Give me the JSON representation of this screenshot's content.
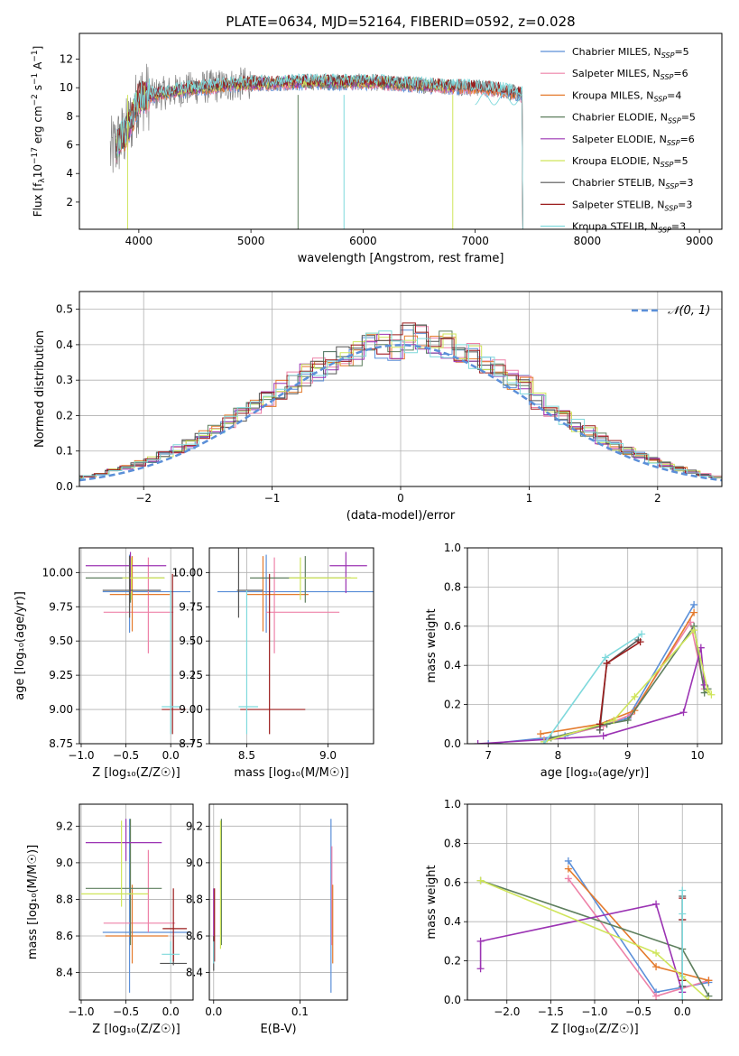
{
  "figure": {
    "title": "PLATE=0634, MJD=52164, FIBERID=0592, z=0.028"
  },
  "colors": {
    "Chabrier MILES": "#5b8fd8",
    "Salpeter MILES": "#ee82a8",
    "Kroupa MILES": "#e47a2c",
    "Chabrier ELODIE": "#5e7f5e",
    "Salpeter ELODIE": "#9b33b3",
    "Kroupa ELODIE": "#cfe55a",
    "Chabrier STELIB": "#555555",
    "Salpeter STELIB": "#9b1c1c",
    "Kroupa STELIB": "#7fd9dc",
    "data": "#808080"
  },
  "chart_data": [
    {
      "id": "spectrum",
      "type": "line",
      "xlabel": "wavelength [Angstrom, rest frame]",
      "ylabel_main": "Flux [f",
      "ylabel_sub": "λ",
      "ylabel_rest": "10",
      "ylabel_exp": "−17",
      "ylabel_tail": " erg cm",
      "ylabel_exp2": "−2",
      "ylabel_s": " s",
      "ylabel_exp3": "−1",
      "ylabel_A": " A",
      "ylabel_exp4": "−1",
      "ylabel_end": "]",
      "xlim": [
        3470,
        9200
      ],
      "ylim": [
        0.1,
        13.8
      ],
      "xticks": [
        4000,
        5000,
        6000,
        7000,
        8000,
        9000
      ],
      "yticks": [
        2,
        4,
        6,
        8,
        10,
        12
      ],
      "legend": [
        {
          "name": "Chabrier MILES",
          "nssp": "5"
        },
        {
          "name": "Salpeter MILES",
          "nssp": "6"
        },
        {
          "name": "Kroupa MILES",
          "nssp": "4"
        },
        {
          "name": "Chabrier ELODIE",
          "nssp": "5"
        },
        {
          "name": "Salpeter ELODIE",
          "nssp": "6"
        },
        {
          "name": "Kroupa ELODIE",
          "nssp": "5"
        },
        {
          "name": "Chabrier STELIB",
          "nssp": "3"
        },
        {
          "name": "Salpeter STELIB",
          "nssp": "3"
        },
        {
          "name": "Kroupa STELIB",
          "nssp": "3"
        }
      ],
      "legend_placement": "upper right",
      "continuum_points": [
        [
          3750,
          5.5
        ],
        [
          3900,
          7.0
        ],
        [
          4000,
          9.3
        ],
        [
          4200,
          9.6
        ],
        [
          4500,
          10.0
        ],
        [
          5000,
          10.3
        ],
        [
          5500,
          10.4
        ],
        [
          6000,
          10.4
        ],
        [
          6500,
          10.2
        ],
        [
          7000,
          10.0
        ],
        [
          7200,
          9.9
        ],
        [
          7420,
          9.5
        ]
      ],
      "model_end": {
        "MILES": 7420,
        "ELODIE": 6800,
        "STELIB": 9000
      },
      "grid": false
    },
    {
      "id": "residuals",
      "type": "step",
      "xlabel": "(data-model)/error",
      "ylabel": "Normed distribution",
      "xlim": [
        -2.5,
        2.5
      ],
      "ylim": [
        0,
        0.55
      ],
      "xticks": [
        -2,
        -1,
        0,
        1,
        2
      ],
      "xtick_labels": [
        "−2",
        "−1",
        "0",
        "1",
        "2"
      ],
      "yticks": [
        0.0,
        0.1,
        0.2,
        0.3,
        0.4,
        0.5
      ],
      "ytick_labels": [
        "0.0",
        "0.1",
        "0.2",
        "0.3",
        "0.4",
        "0.5"
      ],
      "legend_label": "𝒩(0, 1)",
      "bin_width": 0.1,
      "grid": true
    },
    {
      "id": "age-vs-Z",
      "type": "errorbar",
      "xlabel": "Z [log₁₀(Z/Z☉)]",
      "ylabel": "age  [log₁₀(age/yr)]",
      "xlim": [
        -1.02,
        0.25
      ],
      "ylim": [
        8.75,
        10.18
      ],
      "xticks": [
        -1.0,
        -0.5,
        0.0
      ],
      "xtick_labels": [
        "−1.0",
        "−0.5",
        "0.0"
      ],
      "yticks": [
        8.75,
        9.0,
        9.25,
        9.5,
        9.75,
        10.0
      ],
      "ytick_labels": [
        "8.75",
        "9.00",
        "9.25",
        "9.50",
        "9.75",
        "10.00"
      ],
      "points": [
        {
          "model": "Chabrier MILES",
          "x": -0.46,
          "xerr": [
            0.3,
            0.68
          ],
          "y": 9.86,
          "yerr": [
            0.3,
            0.27
          ]
        },
        {
          "model": "Salpeter MILES",
          "x": -0.25,
          "xerr": [
            0.5,
            0.28
          ],
          "y": 9.71,
          "yerr": [
            0.3,
            0.4
          ]
        },
        {
          "model": "Kroupa MILES",
          "x": -0.43,
          "xerr": [
            0.25,
            0.42
          ],
          "y": 9.84,
          "yerr": [
            0.27,
            0.28
          ]
        },
        {
          "model": "Chabrier ELODIE",
          "x": -0.45,
          "xerr": [
            0.5,
            0.38
          ],
          "y": 9.96,
          "yerr": [
            0.18,
            0.16
          ]
        },
        {
          "model": "Salpeter ELODIE",
          "x": -0.45,
          "xerr": [
            0.5,
            0.4
          ],
          "y": 10.05,
          "yerr": [
            0.2,
            0.1
          ]
        },
        {
          "model": "Kroupa ELODIE",
          "x": -0.44,
          "xerr": [
            0.1,
            0.37
          ],
          "y": 9.96,
          "yerr": [
            0.16,
            0.15
          ]
        },
        {
          "model": "Chabrier STELIB",
          "x": -0.46,
          "xerr": [
            0.3,
            0.35
          ],
          "y": 9.87,
          "yerr": [
            0.2,
            0.25
          ]
        },
        {
          "model": "Salpeter STELIB",
          "x": 0.02,
          "xerr": [
            0.12,
            0.15
          ],
          "y": 9.0,
          "yerr": [
            0.18,
            0.99
          ]
        },
        {
          "model": "Kroupa STELIB",
          "x": 0.0,
          "xerr": [
            0.1,
            0.1
          ],
          "y": 9.02,
          "yerr": [
            0.2,
            0.85
          ]
        }
      ],
      "grid": true
    },
    {
      "id": "age-vs-mass",
      "type": "errorbar",
      "xlabel": "mass [log₁₀(M/M☉)]",
      "xlim": [
        8.27,
        9.28
      ],
      "ylim": [
        8.75,
        10.18
      ],
      "xticks": [
        8.5,
        9.0
      ],
      "xtick_labels": [
        "8.5",
        "9.0"
      ],
      "yticks": [
        8.75,
        9.0,
        9.25,
        9.5,
        9.75,
        10.0
      ],
      "ytick_labels": [
        "8.75",
        "9.00",
        "9.25",
        "9.50",
        "9.75",
        "10.00"
      ],
      "points": [
        {
          "model": "Chabrier MILES",
          "x": 8.62,
          "xerr": [
            0.3,
            0.66
          ],
          "y": 9.86,
          "yerr": [
            0.3,
            0.27
          ]
        },
        {
          "model": "Salpeter MILES",
          "x": 8.67,
          "xerr": [
            0.05,
            0.4
          ],
          "y": 9.71,
          "yerr": [
            0.3,
            0.4
          ]
        },
        {
          "model": "Kroupa MILES",
          "x": 8.6,
          "xerr": [
            0.1,
            0.28
          ],
          "y": 9.84,
          "yerr": [
            0.27,
            0.28
          ]
        },
        {
          "model": "Chabrier ELODIE",
          "x": 8.86,
          "xerr": [
            0.34,
            0.28
          ],
          "y": 9.96,
          "yerr": [
            0.18,
            0.16
          ]
        },
        {
          "model": "Salpeter ELODIE",
          "x": 9.11,
          "xerr": [
            0.1,
            0.13
          ],
          "y": 10.05,
          "yerr": [
            0.2,
            0.1
          ]
        },
        {
          "model": "Kroupa ELODIE",
          "x": 8.83,
          "xerr": [
            0.07,
            0.35
          ],
          "y": 9.96,
          "yerr": [
            0.16,
            0.15
          ]
        },
        {
          "model": "Chabrier STELIB",
          "x": 8.45,
          "xerr": [
            0.01,
            0.15
          ],
          "y": 9.87,
          "yerr": [
            0.2,
            1.05
          ]
        },
        {
          "model": "Salpeter STELIB",
          "x": 8.64,
          "xerr": [
            0.18,
            0.22
          ],
          "y": 9.0,
          "yerr": [
            0.18,
            0.99
          ]
        },
        {
          "model": "Kroupa STELIB",
          "x": 8.5,
          "xerr": [
            0.05,
            0.07
          ],
          "y": 9.02,
          "yerr": [
            0.2,
            0.85
          ]
        }
      ],
      "grid": true
    },
    {
      "id": "mass-weight-vs-age",
      "type": "line",
      "xlabel": "age  [log₁₀(age/yr)]",
      "ylabel": "mass weight",
      "xlim": [
        6.7,
        10.35
      ],
      "ylim": [
        0.0,
        1.0
      ],
      "xticks": [
        7,
        8,
        9,
        10
      ],
      "xtick_labels": [
        "7",
        "8",
        "9",
        "10"
      ],
      "yticks": [
        0.0,
        0.2,
        0.4,
        0.6,
        0.8,
        1.0
      ],
      "ytick_labels": [
        "0.0",
        "0.2",
        "0.4",
        "0.6",
        "0.8",
        "1.0"
      ],
      "series": [
        {
          "model": "Chabrier MILES",
          "x": [
            7.0,
            8.1,
            8.7,
            9.0,
            9.95
          ],
          "y": [
            0.0,
            0.04,
            0.1,
            0.13,
            0.71
          ]
        },
        {
          "model": "Salpeter MILES",
          "x": [
            7.8,
            8.65,
            9.05,
            9.9,
            10.1
          ],
          "y": [
            0.02,
            0.09,
            0.15,
            0.62,
            0.28
          ]
        },
        {
          "model": "Kroupa MILES",
          "x": [
            7.75,
            8.6,
            9.1,
            9.95
          ],
          "y": [
            0.05,
            0.1,
            0.17,
            0.67
          ]
        },
        {
          "model": "Chabrier ELODIE",
          "x": [
            7.9,
            8.7,
            9.0,
            9.95,
            10.1,
            10.15
          ],
          "y": [
            0.03,
            0.1,
            0.12,
            0.6,
            0.26,
            0.28
          ]
        },
        {
          "model": "Salpeter ELODIE",
          "x": [
            6.85,
            8.65,
            9.8,
            10.05,
            10.1
          ],
          "y": [
            0.0,
            0.04,
            0.16,
            0.49,
            0.3
          ]
        },
        {
          "model": "Kroupa ELODIE",
          "x": [
            7.8,
            8.8,
            9.1,
            9.95,
            10.15,
            10.2
          ],
          "y": [
            0.01,
            0.12,
            0.24,
            0.58,
            0.27,
            0.25
          ]
        },
        {
          "model": "Chabrier STELIB",
          "x": [
            8.6,
            8.7,
            9.15
          ],
          "y": [
            0.07,
            0.41,
            0.53
          ]
        },
        {
          "model": "Salpeter STELIB",
          "x": [
            8.6,
            8.7,
            9.18
          ],
          "y": [
            0.1,
            0.41,
            0.52
          ]
        },
        {
          "model": "Kroupa STELIB",
          "x": [
            7.8,
            8.68,
            9.2
          ],
          "y": [
            0.0,
            0.44,
            0.56
          ]
        }
      ],
      "grid": true
    },
    {
      "id": "mass-vs-Z",
      "type": "errorbar",
      "xlabel": "Z [log₁₀(Z/Z☉)]",
      "ylabel": "mass [log₁₀(M/M☉)]",
      "xlim": [
        -1.02,
        0.25
      ],
      "ylim": [
        8.25,
        9.32
      ],
      "xticks": [
        -1.0,
        -0.5,
        0.0
      ],
      "xtick_labels": [
        "−1.0",
        "−0.5",
        "0.0"
      ],
      "yticks": [
        8.4,
        8.6,
        8.8,
        9.0,
        9.2
      ],
      "ytick_labels": [
        "8.4",
        "8.6",
        "8.8",
        "9.0",
        "9.2"
      ],
      "points": [
        {
          "model": "Chabrier MILES",
          "x": -0.46,
          "xerr": [
            0.3,
            0.68
          ],
          "y": 8.62,
          "yerr": [
            0.33,
            0.62
          ]
        },
        {
          "model": "Salpeter MILES",
          "x": -0.25,
          "xerr": [
            0.5,
            0.3
          ],
          "y": 8.67,
          "yerr": [
            0.05,
            0.4
          ]
        },
        {
          "model": "Kroupa MILES",
          "x": -0.43,
          "xerr": [
            0.3,
            0.4
          ],
          "y": 8.6,
          "yerr": [
            0.15,
            0.28
          ]
        },
        {
          "model": "Chabrier ELODIE",
          "x": -0.45,
          "xerr": [
            0.5,
            0.35
          ],
          "y": 8.86,
          "yerr": [
            0.31,
            0.38
          ]
        },
        {
          "model": "Salpeter ELODIE",
          "x": -0.5,
          "xerr": [
            0.45,
            0.4
          ],
          "y": 9.11,
          "yerr": [
            0.1,
            0.13
          ]
        },
        {
          "model": "Kroupa ELODIE",
          "x": -0.55,
          "xerr": [
            0.45,
            0.3
          ],
          "y": 8.83,
          "yerr": [
            0.07,
            0.4
          ]
        },
        {
          "model": "Chabrier STELIB",
          "x": 0.03,
          "xerr": [
            0.15,
            0.15
          ],
          "y": 8.45,
          "yerr": [
            0.01,
            0.15
          ]
        },
        {
          "model": "Salpeter STELIB",
          "x": 0.03,
          "xerr": [
            0.12,
            0.15
          ],
          "y": 8.64,
          "yerr": [
            0.18,
            0.22
          ]
        },
        {
          "model": "Kroupa STELIB",
          "x": 0.0,
          "xerr": [
            0.1,
            0.1
          ],
          "y": 8.5,
          "yerr": [
            0.05,
            0.07
          ]
        }
      ],
      "grid": true
    },
    {
      "id": "mass-vs-ebv",
      "type": "errorbar",
      "xlabel": "E(B-V)",
      "xlim": [
        -0.005,
        0.155
      ],
      "ylim": [
        8.25,
        9.32
      ],
      "xticks": [
        0.0,
        0.1
      ],
      "xtick_labels": [
        "0.0",
        "0.1"
      ],
      "yticks": [
        8.4,
        8.6,
        8.8,
        9.0,
        9.2
      ],
      "ytick_labels": [
        "8.4",
        "8.6",
        "8.8",
        "9.0",
        "9.2"
      ],
      "points": [
        {
          "model": "Chabrier MILES",
          "x": 0.136,
          "y": 8.62,
          "yerr": [
            0.33,
            0.62
          ]
        },
        {
          "model": "Salpeter MILES",
          "x": 0.137,
          "y": 8.67,
          "yerr": [
            0.12,
            0.42
          ]
        },
        {
          "model": "Kroupa MILES",
          "x": 0.138,
          "y": 8.6,
          "yerr": [
            0.15,
            0.28
          ]
        },
        {
          "model": "Chabrier ELODIE",
          "x": 0.009,
          "y": 8.86,
          "yerr": [
            0.31,
            0.38
          ]
        },
        {
          "model": "Salpeter ELODIE",
          "x": 0.0,
          "y": 8.7,
          "yerr": [
            0.25,
            0.16
          ]
        },
        {
          "model": "Kroupa ELODIE",
          "x": 0.008,
          "y": 8.83,
          "yerr": [
            0.3,
            0.4
          ]
        },
        {
          "model": "Chabrier STELIB",
          "x": 0.0,
          "y": 8.45,
          "yerr": [
            0.04,
            0.15
          ]
        },
        {
          "model": "Salpeter STELIB",
          "x": 0.001,
          "y": 8.64,
          "yerr": [
            0.18,
            0.22
          ]
        },
        {
          "model": "Kroupa STELIB",
          "x": 0.0,
          "y": 8.5,
          "yerr": [
            0.05,
            0.07
          ]
        }
      ],
      "grid": true
    },
    {
      "id": "mass-weight-vs-Z",
      "type": "line",
      "xlabel": "Z [log₁₀(Z/Z☉)]",
      "ylabel": "mass weight",
      "xlim": [
        -2.45,
        0.45
      ],
      "ylim": [
        0.0,
        1.0
      ],
      "xticks": [
        -2.0,
        -1.5,
        -1.0,
        -0.5,
        0.0
      ],
      "xtick_labels": [
        "−2.0",
        "−1.5",
        "−1.0",
        "−0.5",
        "0.0"
      ],
      "yticks": [
        0.0,
        0.2,
        0.4,
        0.6,
        0.8,
        1.0
      ],
      "ytick_labels": [
        "0.0",
        "0.2",
        "0.4",
        "0.6",
        "0.8",
        "1.0"
      ],
      "series": [
        {
          "model": "Chabrier MILES",
          "x": [
            -1.3,
            -0.3,
            0.3
          ],
          "y": [
            0.71,
            0.04,
            0.09
          ]
        },
        {
          "model": "Salpeter MILES",
          "x": [
            -1.3,
            -0.3,
            0.3
          ],
          "y": [
            0.62,
            0.02,
            0.1
          ]
        },
        {
          "model": "Kroupa MILES",
          "x": [
            -1.3,
            -0.3,
            0.3
          ],
          "y": [
            0.67,
            0.17,
            0.1
          ]
        },
        {
          "model": "Chabrier ELODIE",
          "x": [
            -2.3,
            0.0,
            0.3
          ],
          "y": [
            0.61,
            0.26,
            0.02
          ]
        },
        {
          "model": "Salpeter ELODIE",
          "x": [
            -2.3,
            -2.3,
            -0.3,
            0.0
          ],
          "y": [
            0.16,
            0.3,
            0.49,
            0.04
          ]
        },
        {
          "model": "Kroupa ELODIE",
          "x": [
            -2.3,
            -0.3,
            0.0,
            0.3
          ],
          "y": [
            0.61,
            0.24,
            0.12,
            0.0
          ]
        },
        {
          "model": "Chabrier STELIB",
          "x": [
            0.0,
            0.0,
            0.0
          ],
          "y": [
            0.53,
            0.41,
            0.07
          ]
        },
        {
          "model": "Salpeter STELIB",
          "x": [
            0.0,
            0.0,
            0.0
          ],
          "y": [
            0.52,
            0.41,
            0.1
          ]
        },
        {
          "model": "Kroupa STELIB",
          "x": [
            0.0,
            0.0,
            0.0
          ],
          "y": [
            0.56,
            0.44,
            0.0
          ]
        }
      ],
      "grid": true
    }
  ]
}
